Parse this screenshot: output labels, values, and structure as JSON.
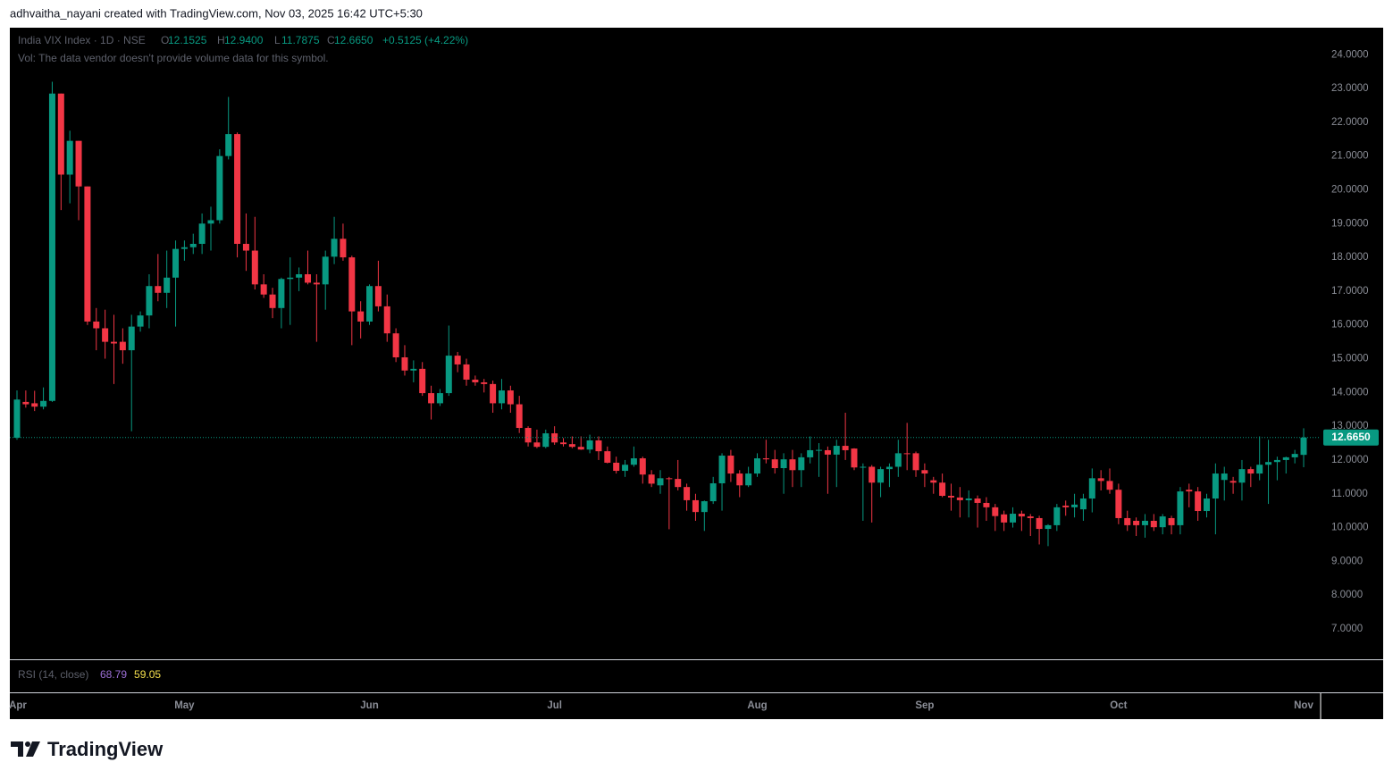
{
  "attribution": "adhvaitha_nayani created with TradingView.com, Nov 03, 2025 16:42 UTC+5:30",
  "brand": "TradingView",
  "chart_data": {
    "type": "candlestick",
    "title": "India VIX Index · 1D · NSE",
    "legend": {
      "o": "O",
      "open": "12.1525",
      "h": "H",
      "high": "12.9400",
      "l": "L",
      "low": "11.7875",
      "c": "C",
      "close": "12.6650",
      "change": "+0.5125 (+4.22%)"
    },
    "volume_note": "Vol: The data vendor doesn't provide volume data for this symbol.",
    "last_price_label": "12.6650",
    "up_color": "#089981",
    "down_color": "#f23645",
    "grid": false,
    "rsi": {
      "label": "RSI (14, close)",
      "values": [
        68.79,
        59.05
      ],
      "colors": [
        "#9c6fd6",
        "#f5e04d"
      ]
    },
    "categories": [
      "Apr",
      null,
      null,
      null,
      null,
      null,
      null,
      null,
      null,
      null,
      null,
      null,
      null,
      null,
      null,
      null,
      null,
      null,
      null,
      "May",
      null,
      null,
      null,
      null,
      null,
      null,
      null,
      null,
      null,
      null,
      null,
      null,
      null,
      null,
      null,
      null,
      null,
      null,
      null,
      null,
      "Jun",
      null,
      null,
      null,
      null,
      null,
      null,
      null,
      null,
      null,
      null,
      null,
      null,
      null,
      null,
      null,
      null,
      null,
      null,
      null,
      null,
      "Jul",
      null,
      null,
      null,
      null,
      null,
      null,
      null,
      null,
      null,
      null,
      null,
      null,
      null,
      null,
      null,
      null,
      null,
      null,
      null,
      null,
      null,
      null,
      "Aug",
      null,
      null,
      null,
      null,
      null,
      null,
      null,
      null,
      null,
      null,
      null,
      null,
      null,
      null,
      null,
      null,
      null,
      null,
      "Sep",
      null,
      null,
      null,
      null,
      null,
      null,
      null,
      null,
      null,
      null,
      null,
      null,
      null,
      null,
      null,
      null,
      null,
      null,
      null,
      null,
      null,
      "Oct",
      null,
      null,
      null,
      null,
      null,
      null,
      null,
      null,
      null,
      null,
      null,
      null,
      null,
      null,
      null,
      null,
      null,
      null,
      null,
      null,
      "Nov"
    ],
    "open": [
      12.66,
      13.72,
      13.68,
      13.58,
      13.75,
      22.85,
      20.45,
      21.45,
      20.1,
      16.1,
      15.9,
      15.5,
      15.5,
      15.25,
      15.95,
      16.28,
      17.15,
      16.95,
      17.4,
      18.25,
      18.3,
      18.4,
      19.0,
      19.1,
      21.0,
      21.65,
      18.4,
      18.2,
      17.2,
      16.9,
      16.5,
      17.36,
      17.4,
      17.5,
      17.25,
      17.2,
      18.02,
      18.55,
      18.0,
      16.4,
      16.1,
      17.15,
      16.55,
      15.75,
      15.04,
      14.65,
      14.7,
      13.98,
      13.68,
      13.98,
      15.09,
      14.83,
      14.38,
      14.3,
      14.25,
      13.68,
      14.06,
      13.65,
      12.95,
      12.52,
      12.39,
      12.79,
      12.52,
      12.47,
      12.39,
      12.31,
      12.58,
      12.26,
      11.92,
      11.68,
      11.86,
      12.05,
      11.57,
      11.25,
      11.46,
      11.44,
      11.2,
      10.81,
      10.46,
      10.78,
      11.31,
      12.13,
      11.6,
      11.25,
      11.6,
      12.05,
      12.02,
      11.76,
      12.02,
      11.7,
      12.08,
      12.29,
      12.29,
      12.16,
      12.42,
      12.34,
      11.78,
      11.8,
      11.33,
      11.73,
      11.8,
      12.2,
      12.2,
      11.7,
      11.4,
      11.33,
      10.94,
      10.89,
      10.81,
      10.86,
      10.73,
      10.6,
      10.39,
      10.15,
      10.41,
      10.33,
      10.28,
      9.96,
      10.07,
      10.65,
      10.6,
      10.54,
      10.86,
      11.46,
      11.38,
      11.12,
      10.28,
      10.2,
      10.07,
      10.2,
      10.01,
      10.28,
      10.07,
      11.12,
      11.07,
      10.49,
      10.86,
      11.41,
      11.38,
      11.33,
      11.73,
      11.6,
      11.86,
      11.94,
      12.0,
      12.08,
      12.1525
    ],
    "high": [
      14.06,
      14.06,
      14.05,
      14.15,
      23.2,
      22.85,
      21.75,
      21.45,
      20.1,
      16.5,
      16.45,
      16.3,
      15.9,
      16.3,
      16.4,
      17.5,
      18.1,
      18.2,
      18.5,
      18.5,
      18.7,
      19.3,
      19.5,
      21.2,
      22.75,
      21.7,
      19.3,
      19.2,
      17.5,
      17.1,
      17.4,
      18.0,
      17.7,
      18.2,
      17.5,
      18.2,
      19.2,
      19.0,
      18.05,
      16.7,
      17.2,
      17.9,
      16.9,
      15.9,
      15.4,
      14.95,
      14.9,
      14.2,
      14.1,
      15.98,
      15.2,
      15.0,
      14.5,
      14.4,
      14.35,
      14.4,
      14.2,
      13.9,
      13.0,
      12.9,
      12.9,
      13.0,
      12.65,
      12.7,
      12.7,
      12.75,
      12.7,
      12.4,
      12.1,
      12.0,
      12.4,
      12.1,
      11.7,
      11.7,
      11.5,
      12.0,
      11.3,
      11.0,
      10.8,
      11.5,
      12.2,
      12.3,
      11.7,
      11.8,
      12.2,
      12.6,
      12.3,
      12.2,
      12.3,
      12.2,
      12.7,
      12.5,
      12.4,
      12.6,
      13.4,
      12.35,
      11.9,
      11.85,
      11.8,
      11.9,
      12.6,
      13.1,
      12.25,
      11.9,
      11.5,
      11.6,
      11.3,
      11.2,
      11.1,
      10.95,
      10.9,
      10.7,
      10.5,
      10.6,
      10.5,
      10.4,
      10.35,
      10.1,
      10.7,
      10.8,
      11.0,
      11.0,
      11.75,
      11.7,
      11.75,
      11.3,
      10.5,
      10.3,
      10.4,
      10.4,
      10.4,
      10.35,
      11.2,
      11.3,
      11.2,
      11.0,
      11.9,
      11.8,
      11.5,
      12.0,
      11.8,
      12.7,
      12.6,
      12.1,
      12.1,
      12.3,
      12.94
    ],
    "low": [
      12.6,
      13.55,
      13.45,
      13.5,
      13.72,
      19.4,
      19.6,
      19.1,
      16.0,
      15.25,
      15.0,
      14.25,
      14.85,
      12.85,
      15.8,
      15.9,
      16.7,
      16.5,
      15.95,
      17.9,
      18.1,
      18.1,
      18.2,
      19.0,
      20.9,
      18.0,
      17.6,
      17.05,
      16.8,
      16.2,
      15.9,
      16.0,
      17.0,
      17.2,
      15.5,
      16.45,
      17.8,
      17.9,
      15.4,
      15.6,
      16.0,
      16.4,
      15.5,
      14.9,
      14.5,
      14.3,
      13.9,
      13.2,
      13.6,
      13.9,
      14.6,
      14.2,
      14.2,
      14.0,
      13.4,
      13.5,
      13.4,
      12.8,
      12.4,
      12.35,
      12.35,
      12.45,
      12.4,
      12.35,
      12.3,
      12.2,
      12.0,
      11.9,
      11.6,
      11.5,
      11.8,
      11.3,
      11.2,
      11.0,
      9.95,
      11.1,
      10.5,
      10.2,
      9.9,
      10.7,
      10.5,
      11.35,
      10.9,
      11.2,
      11.5,
      11.9,
      11.6,
      11.0,
      11.2,
      11.2,
      11.9,
      11.5,
      11.0,
      11.2,
      12.0,
      11.7,
      10.2,
      10.15,
      10.9,
      11.2,
      11.5,
      11.7,
      11.5,
      11.2,
      11.0,
      10.9,
      10.5,
      10.3,
      10.3,
      10.0,
      10.2,
      9.9,
      9.9,
      10.0,
      9.9,
      9.75,
      9.5,
      9.45,
      9.9,
      10.35,
      10.3,
      10.2,
      10.45,
      11.1,
      11.0,
      10.1,
      9.9,
      9.75,
      9.7,
      9.9,
      9.8,
      9.8,
      9.8,
      10.6,
      10.2,
      10.3,
      9.8,
      10.8,
      11.0,
      10.8,
      11.2,
      11.4,
      10.7,
      11.4,
      11.6,
      11.9,
      11.7875
    ],
    "close": [
      13.79,
      13.65,
      13.58,
      13.75,
      22.85,
      20.45,
      21.45,
      20.1,
      16.1,
      15.9,
      15.5,
      15.45,
      15.25,
      15.95,
      16.28,
      17.15,
      16.95,
      17.4,
      18.25,
      18.3,
      18.4,
      19.0,
      19.1,
      21.0,
      21.65,
      18.4,
      18.2,
      17.2,
      16.9,
      16.5,
      17.36,
      17.4,
      17.5,
      17.25,
      17.2,
      18.02,
      18.55,
      18.0,
      16.4,
      16.1,
      17.15,
      16.55,
      15.75,
      15.04,
      14.65,
      14.7,
      13.98,
      13.68,
      13.98,
      15.09,
      14.83,
      14.38,
      14.3,
      14.25,
      13.68,
      14.06,
      13.65,
      12.95,
      12.52,
      12.39,
      12.79,
      12.52,
      12.47,
      12.39,
      12.31,
      12.58,
      12.26,
      11.92,
      11.68,
      11.86,
      12.05,
      11.57,
      11.3,
      11.46,
      11.44,
      11.2,
      10.81,
      10.46,
      10.78,
      11.31,
      12.13,
      11.6,
      11.25,
      11.6,
      12.05,
      12.02,
      11.76,
      12.02,
      11.7,
      12.08,
      12.29,
      12.3,
      12.16,
      12.42,
      12.29,
      11.78,
      11.8,
      11.33,
      11.73,
      11.8,
      12.2,
      12.18,
      11.7,
      11.6,
      11.33,
      10.94,
      10.89,
      10.81,
      10.86,
      10.73,
      10.6,
      10.34,
      10.15,
      10.41,
      10.33,
      10.28,
      9.96,
      10.07,
      10.6,
      10.6,
      10.68,
      10.86,
      11.46,
      11.38,
      11.12,
      10.28,
      10.07,
      10.07,
      10.2,
      10.01,
      10.33,
      10.07,
      11.07,
      11.07,
      10.49,
      10.86,
      11.6,
      11.6,
      11.33,
      11.73,
      11.6,
      11.86,
      11.94,
      12.0,
      12.08,
      12.18,
      12.665
    ],
    "ylim": [
      6.1,
      24.8
    ],
    "yticks": [
      {
        "value": 7,
        "label": "7.0000"
      },
      {
        "value": 8,
        "label": "8.0000"
      },
      {
        "value": 9,
        "label": "9.0000"
      },
      {
        "value": 10,
        "label": "10.0000"
      },
      {
        "value": 11,
        "label": "11.0000"
      },
      {
        "value": 12,
        "label": "12.0000"
      },
      {
        "value": 13,
        "label": "13.0000"
      },
      {
        "value": 14,
        "label": "14.0000"
      },
      {
        "value": 15,
        "label": "15.0000"
      },
      {
        "value": 16,
        "label": "16.0000"
      },
      {
        "value": 17,
        "label": "17.0000"
      },
      {
        "value": 18,
        "label": "18.0000"
      },
      {
        "value": 19,
        "label": "19.0000"
      },
      {
        "value": 20,
        "label": "20.0000"
      },
      {
        "value": 21,
        "label": "21.0000"
      },
      {
        "value": 22,
        "label": "22.0000"
      },
      {
        "value": 23,
        "label": "23.0000"
      },
      {
        "value": 24,
        "label": "24.0000"
      }
    ]
  }
}
